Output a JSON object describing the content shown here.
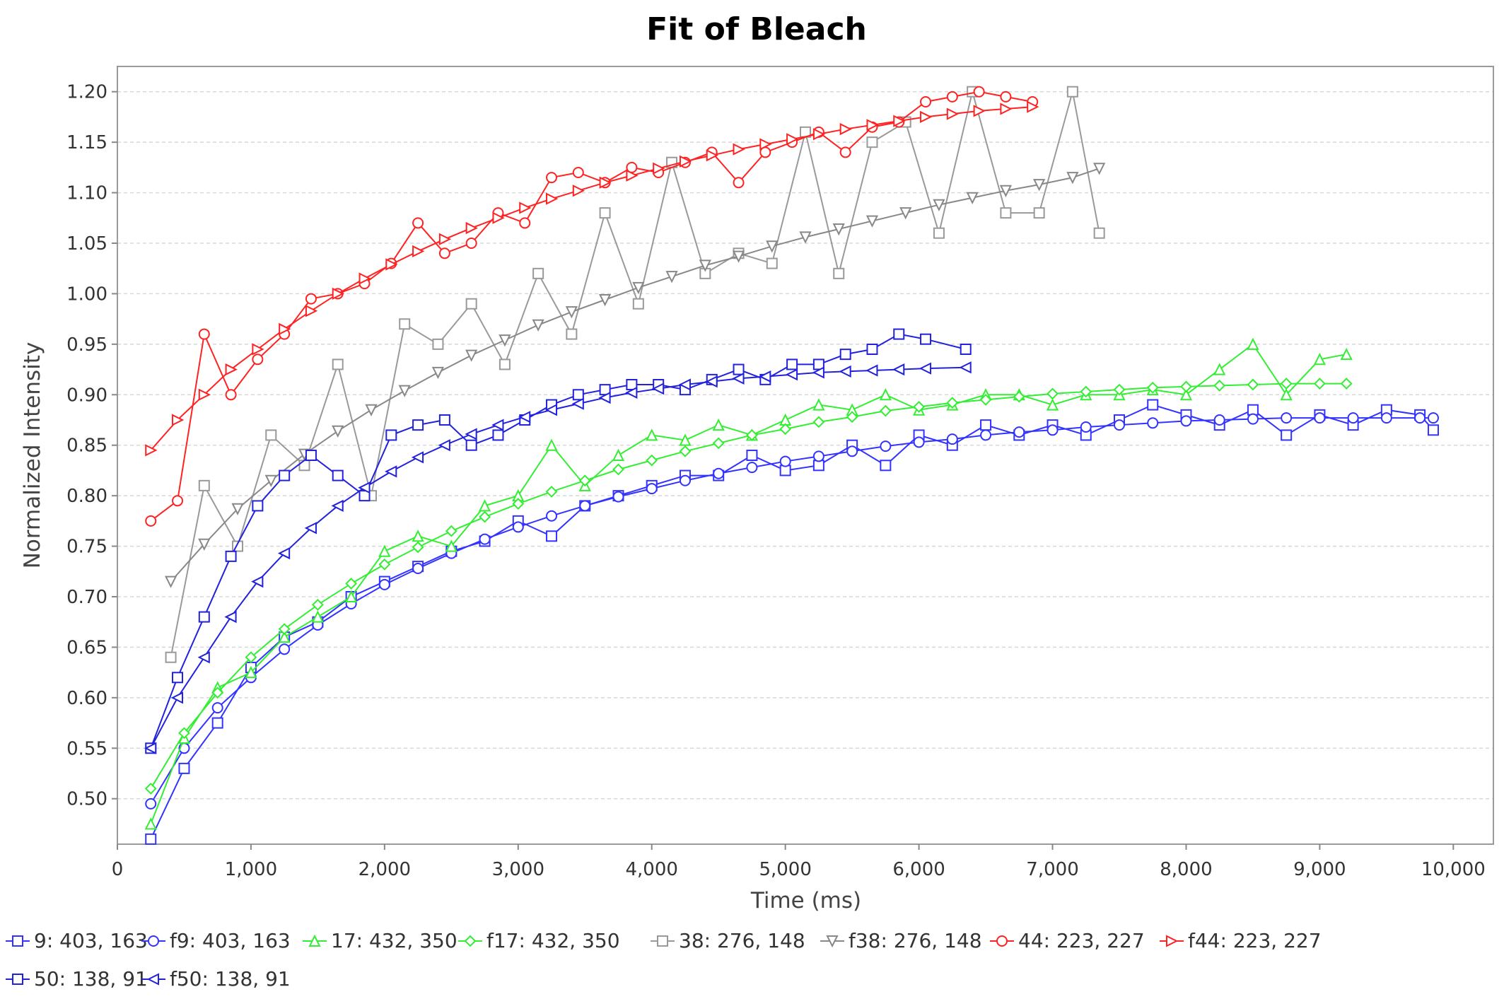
{
  "chart_data": {
    "type": "line",
    "title": "Fit of Bleach",
    "xlabel": "Time (ms)",
    "ylabel": "Normalized Intensity",
    "xlim": [
      0,
      10300
    ],
    "ylim": [
      0.455,
      1.225
    ],
    "x_ticks": [
      0,
      1000,
      2000,
      3000,
      4000,
      5000,
      6000,
      7000,
      8000,
      9000,
      10000
    ],
    "x_tick_labels": [
      "0",
      "1,000",
      "2,000",
      "3,000",
      "4,000",
      "5,000",
      "6,000",
      "7,000",
      "8,000",
      "9,000",
      "10,000"
    ],
    "y_ticks": [
      0.5,
      0.55,
      0.6,
      0.65,
      0.7,
      0.75,
      0.8,
      0.85,
      0.9,
      0.95,
      1.0,
      1.05,
      1.1,
      1.15,
      1.2
    ],
    "y_tick_labels": [
      "0.50",
      "0.55",
      "0.60",
      "0.65",
      "0.70",
      "0.75",
      "0.80",
      "0.85",
      "0.90",
      "0.95",
      "1.00",
      "1.05",
      "1.10",
      "1.15",
      "1.20"
    ],
    "grid": true,
    "legend_position": "bottom",
    "series": [
      {
        "name": "9: 403, 163",
        "color": "#3333ff",
        "marker": "square",
        "kind": "data",
        "x": [
          250,
          500,
          750,
          1000,
          1250,
          1500,
          1750,
          2000,
          2250,
          2500,
          2750,
          3000,
          3250,
          3500,
          3750,
          4000,
          4250,
          4500,
          4750,
          5000,
          5250,
          5500,
          5750,
          6000,
          6250,
          6500,
          6750,
          7000,
          7250,
          7500,
          7750,
          8000,
          8250,
          8500,
          8750,
          9000,
          9250,
          9500,
          9750,
          9850
        ],
        "y": [
          0.46,
          0.53,
          0.575,
          0.63,
          0.66,
          0.675,
          0.7,
          0.715,
          0.73,
          0.745,
          0.755,
          0.775,
          0.76,
          0.79,
          0.8,
          0.81,
          0.82,
          0.82,
          0.84,
          0.825,
          0.83,
          0.85,
          0.83,
          0.86,
          0.85,
          0.87,
          0.86,
          0.87,
          0.86,
          0.875,
          0.89,
          0.88,
          0.87,
          0.885,
          0.86,
          0.88,
          0.87,
          0.885,
          0.88,
          0.865
        ]
      },
      {
        "name": "f9: 403, 163",
        "color": "#3333ff",
        "marker": "circle",
        "kind": "fit",
        "x": [
          250,
          500,
          750,
          1000,
          1250,
          1500,
          1750,
          2000,
          2250,
          2500,
          2750,
          3000,
          3250,
          3500,
          3750,
          4000,
          4250,
          4500,
          4750,
          5000,
          5250,
          5500,
          5750,
          6000,
          6250,
          6500,
          6750,
          7000,
          7250,
          7500,
          7750,
          8000,
          8250,
          8500,
          8750,
          9000,
          9250,
          9500,
          9750,
          9850
        ],
        "y": [
          0.495,
          0.55,
          0.59,
          0.62,
          0.648,
          0.672,
          0.693,
          0.712,
          0.728,
          0.743,
          0.757,
          0.769,
          0.78,
          0.79,
          0.799,
          0.807,
          0.815,
          0.822,
          0.828,
          0.834,
          0.839,
          0.844,
          0.849,
          0.853,
          0.856,
          0.86,
          0.863,
          0.865,
          0.868,
          0.87,
          0.872,
          0.874,
          0.875,
          0.876,
          0.877,
          0.877,
          0.877,
          0.877,
          0.877,
          0.877
        ]
      },
      {
        "name": "17: 432, 350",
        "color": "#33ee33",
        "marker": "triangle-up",
        "kind": "data",
        "x": [
          250,
          500,
          750,
          1000,
          1250,
          1500,
          1750,
          2000,
          2250,
          2500,
          2750,
          3000,
          3250,
          3500,
          3750,
          4000,
          4250,
          4500,
          4750,
          5000,
          5250,
          5500,
          5750,
          6000,
          6250,
          6500,
          6750,
          7000,
          7250,
          7500,
          7750,
          8000,
          8250,
          8500,
          8750,
          9000,
          9200
        ],
        "y": [
          0.475,
          0.56,
          0.61,
          0.625,
          0.66,
          0.68,
          0.7,
          0.745,
          0.76,
          0.75,
          0.79,
          0.8,
          0.85,
          0.81,
          0.84,
          0.86,
          0.855,
          0.87,
          0.86,
          0.875,
          0.89,
          0.885,
          0.9,
          0.885,
          0.89,
          0.9,
          0.9,
          0.89,
          0.9,
          0.9,
          0.905,
          0.9,
          0.925,
          0.95,
          0.9,
          0.935,
          0.94
        ]
      },
      {
        "name": "f17: 432, 350",
        "color": "#33ee33",
        "marker": "diamond",
        "kind": "fit",
        "x": [
          250,
          500,
          750,
          1000,
          1250,
          1500,
          1750,
          2000,
          2250,
          2500,
          2750,
          3000,
          3250,
          3500,
          3750,
          4000,
          4250,
          4500,
          4750,
          5000,
          5250,
          5500,
          5750,
          6000,
          6250,
          6500,
          6750,
          7000,
          7250,
          7500,
          7750,
          8000,
          8250,
          8500,
          8750,
          9000,
          9200
        ],
        "y": [
          0.51,
          0.565,
          0.605,
          0.64,
          0.668,
          0.692,
          0.713,
          0.732,
          0.749,
          0.765,
          0.779,
          0.792,
          0.804,
          0.815,
          0.826,
          0.835,
          0.844,
          0.852,
          0.86,
          0.866,
          0.873,
          0.878,
          0.884,
          0.888,
          0.892,
          0.895,
          0.898,
          0.901,
          0.903,
          0.905,
          0.907,
          0.908,
          0.909,
          0.91,
          0.911,
          0.911,
          0.911
        ]
      },
      {
        "name": "38: 276, 148",
        "color": "#999999",
        "marker": "square",
        "kind": "data",
        "x": [
          400,
          650,
          900,
          1150,
          1400,
          1650,
          1900,
          2150,
          2400,
          2650,
          2900,
          3150,
          3400,
          3650,
          3900,
          4150,
          4400,
          4650,
          4900,
          5150,
          5400,
          5650,
          5900,
          6150,
          6400,
          6650,
          6900,
          7150,
          7350
        ],
        "y": [
          0.64,
          0.81,
          0.75,
          0.86,
          0.83,
          0.93,
          0.8,
          0.97,
          0.95,
          0.99,
          0.93,
          1.02,
          0.96,
          1.08,
          0.99,
          1.13,
          1.02,
          1.04,
          1.03,
          1.16,
          1.02,
          1.15,
          1.17,
          1.06,
          1.2,
          1.08,
          1.08,
          1.2,
          1.06
        ]
      },
      {
        "name": "f38: 276, 148",
        "color": "#888888",
        "marker": "triangle-down",
        "kind": "fit",
        "x": [
          400,
          650,
          900,
          1150,
          1400,
          1650,
          1900,
          2150,
          2400,
          2650,
          2900,
          3150,
          3400,
          3650,
          3900,
          4150,
          4400,
          4650,
          4900,
          5150,
          5400,
          5650,
          5900,
          6150,
          6400,
          6650,
          6900,
          7150,
          7350
        ],
        "y": [
          0.715,
          0.752,
          0.787,
          0.815,
          0.841,
          0.864,
          0.885,
          0.904,
          0.922,
          0.939,
          0.954,
          0.969,
          0.982,
          0.994,
          1.006,
          1.017,
          1.028,
          1.037,
          1.047,
          1.056,
          1.064,
          1.072,
          1.08,
          1.088,
          1.095,
          1.102,
          1.108,
          1.115,
          1.124
        ]
      },
      {
        "name": "44: 223, 227",
        "color": "#ff2222",
        "marker": "circle",
        "kind": "data",
        "x": [
          250,
          450,
          650,
          850,
          1050,
          1250,
          1450,
          1650,
          1850,
          2050,
          2250,
          2450,
          2650,
          2850,
          3050,
          3250,
          3450,
          3650,
          3850,
          4050,
          4250,
          4450,
          4650,
          4850,
          5050,
          5250,
          5450,
          5650,
          5850,
          6050,
          6250,
          6450,
          6650,
          6850
        ],
        "y": [
          0.775,
          0.795,
          0.96,
          0.9,
          0.935,
          0.96,
          0.995,
          1.0,
          1.01,
          1.03,
          1.07,
          1.04,
          1.05,
          1.08,
          1.07,
          1.115,
          1.12,
          1.11,
          1.125,
          1.12,
          1.13,
          1.14,
          1.11,
          1.14,
          1.15,
          1.16,
          1.14,
          1.165,
          1.17,
          1.19,
          1.195,
          1.2,
          1.195,
          1.19
        ]
      },
      {
        "name": "f44: 223, 227",
        "color": "#ff2222",
        "marker": "triangle-right",
        "kind": "fit",
        "x": [
          250,
          450,
          650,
          850,
          1050,
          1250,
          1450,
          1650,
          1850,
          2050,
          2250,
          2450,
          2650,
          2850,
          3050,
          3250,
          3450,
          3650,
          3850,
          4050,
          4250,
          4450,
          4650,
          4850,
          5050,
          5250,
          5450,
          5650,
          5850,
          6050,
          6250,
          6450,
          6650,
          6850
        ],
        "y": [
          0.845,
          0.875,
          0.9,
          0.925,
          0.945,
          0.965,
          0.983,
          1.0,
          1.015,
          1.029,
          1.042,
          1.054,
          1.065,
          1.075,
          1.085,
          1.094,
          1.102,
          1.11,
          1.117,
          1.124,
          1.131,
          1.137,
          1.143,
          1.148,
          1.153,
          1.158,
          1.163,
          1.167,
          1.171,
          1.175,
          1.178,
          1.181,
          1.183,
          1.185
        ]
      },
      {
        "name": "50: 138, 91",
        "color": "#2222dd",
        "marker": "square",
        "kind": "data",
        "x": [
          250,
          450,
          650,
          850,
          1050,
          1250,
          1450,
          1650,
          1850,
          2050,
          2250,
          2450,
          2650,
          2850,
          3050,
          3250,
          3450,
          3650,
          3850,
          4050,
          4250,
          4450,
          4650,
          4850,
          5050,
          5250,
          5450,
          5650,
          5850,
          6050,
          6350
        ],
        "y": [
          0.55,
          0.62,
          0.68,
          0.74,
          0.79,
          0.82,
          0.84,
          0.82,
          0.8,
          0.86,
          0.87,
          0.875,
          0.85,
          0.86,
          0.875,
          0.89,
          0.9,
          0.905,
          0.91,
          0.91,
          0.905,
          0.915,
          0.925,
          0.915,
          0.93,
          0.93,
          0.94,
          0.945,
          0.96,
          0.955,
          0.945
        ]
      },
      {
        "name": "f50: 138, 91",
        "color": "#2222dd",
        "marker": "triangle-left",
        "kind": "fit",
        "x": [
          250,
          450,
          650,
          850,
          1050,
          1250,
          1450,
          1650,
          1850,
          2050,
          2250,
          2450,
          2650,
          2850,
          3050,
          3250,
          3450,
          3650,
          3850,
          4050,
          4250,
          4450,
          4650,
          4850,
          5050,
          5250,
          5450,
          5650,
          5850,
          6050,
          6350
        ],
        "y": [
          0.55,
          0.6,
          0.64,
          0.68,
          0.715,
          0.743,
          0.768,
          0.79,
          0.808,
          0.824,
          0.838,
          0.85,
          0.861,
          0.87,
          0.878,
          0.885,
          0.891,
          0.897,
          0.902,
          0.906,
          0.91,
          0.913,
          0.916,
          0.918,
          0.92,
          0.922,
          0.923,
          0.924,
          0.925,
          0.926,
          0.927
        ]
      }
    ]
  }
}
